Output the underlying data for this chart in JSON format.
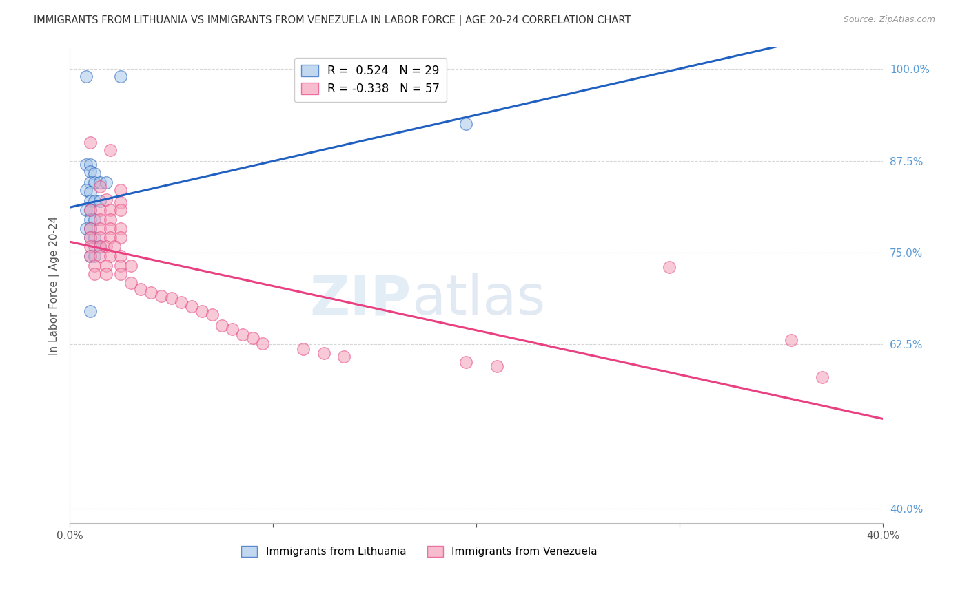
{
  "title": "IMMIGRANTS FROM LITHUANIA VS IMMIGRANTS FROM VENEZUELA IN LABOR FORCE | AGE 20-24 CORRELATION CHART",
  "source": "Source: ZipAtlas.com",
  "ylabel": "In Labor Force | Age 20-24",
  "yticks": [
    0.4,
    0.625,
    0.75,
    0.875,
    1.0
  ],
  "ytick_labels": [
    "40.0%",
    "62.5%",
    "75.0%",
    "87.5%",
    "100.0%"
  ],
  "xlim": [
    0.0,
    0.4
  ],
  "ylim": [
    0.38,
    1.03
  ],
  "legend_r_blue": "R =  0.524",
  "legend_n_blue": "N = 29",
  "legend_r_pink": "R = -0.338",
  "legend_n_pink": "N = 57",
  "blue_color": "#a8c8e8",
  "pink_color": "#f4a0b8",
  "blue_line_color": "#2060c0",
  "pink_line_color": "#e84080",
  "blue_scatter": [
    [
      0.008,
      0.99
    ],
    [
      0.025,
      0.99
    ],
    [
      0.008,
      0.87
    ],
    [
      0.01,
      0.87
    ],
    [
      0.01,
      0.86
    ],
    [
      0.012,
      0.858
    ],
    [
      0.01,
      0.845
    ],
    [
      0.012,
      0.845
    ],
    [
      0.015,
      0.845
    ],
    [
      0.018,
      0.845
    ],
    [
      0.008,
      0.835
    ],
    [
      0.01,
      0.832
    ],
    [
      0.01,
      0.82
    ],
    [
      0.012,
      0.82
    ],
    [
      0.015,
      0.82
    ],
    [
      0.008,
      0.808
    ],
    [
      0.01,
      0.808
    ],
    [
      0.01,
      0.795
    ],
    [
      0.012,
      0.795
    ],
    [
      0.008,
      0.782
    ],
    [
      0.01,
      0.782
    ],
    [
      0.01,
      0.77
    ],
    [
      0.012,
      0.77
    ],
    [
      0.012,
      0.758
    ],
    [
      0.015,
      0.758
    ],
    [
      0.01,
      0.745
    ],
    [
      0.012,
      0.745
    ],
    [
      0.01,
      0.67
    ],
    [
      0.195,
      0.925
    ]
  ],
  "pink_scatter": [
    [
      0.01,
      0.9
    ],
    [
      0.02,
      0.89
    ],
    [
      0.015,
      0.84
    ],
    [
      0.025,
      0.835
    ],
    [
      0.018,
      0.822
    ],
    [
      0.025,
      0.818
    ],
    [
      0.01,
      0.808
    ],
    [
      0.015,
      0.808
    ],
    [
      0.02,
      0.808
    ],
    [
      0.025,
      0.808
    ],
    [
      0.015,
      0.795
    ],
    [
      0.02,
      0.795
    ],
    [
      0.01,
      0.782
    ],
    [
      0.015,
      0.782
    ],
    [
      0.02,
      0.782
    ],
    [
      0.025,
      0.782
    ],
    [
      0.01,
      0.77
    ],
    [
      0.015,
      0.77
    ],
    [
      0.02,
      0.77
    ],
    [
      0.025,
      0.77
    ],
    [
      0.01,
      0.758
    ],
    [
      0.015,
      0.758
    ],
    [
      0.018,
      0.758
    ],
    [
      0.022,
      0.758
    ],
    [
      0.01,
      0.745
    ],
    [
      0.015,
      0.745
    ],
    [
      0.02,
      0.745
    ],
    [
      0.025,
      0.745
    ],
    [
      0.012,
      0.732
    ],
    [
      0.018,
      0.732
    ],
    [
      0.025,
      0.732
    ],
    [
      0.03,
      0.732
    ],
    [
      0.012,
      0.72
    ],
    [
      0.018,
      0.72
    ],
    [
      0.025,
      0.72
    ],
    [
      0.03,
      0.708
    ],
    [
      0.035,
      0.7
    ],
    [
      0.04,
      0.695
    ],
    [
      0.045,
      0.69
    ],
    [
      0.05,
      0.688
    ],
    [
      0.055,
      0.682
    ],
    [
      0.06,
      0.676
    ],
    [
      0.065,
      0.67
    ],
    [
      0.07,
      0.665
    ],
    [
      0.075,
      0.65
    ],
    [
      0.08,
      0.645
    ],
    [
      0.085,
      0.638
    ],
    [
      0.09,
      0.633
    ],
    [
      0.095,
      0.626
    ],
    [
      0.115,
      0.618
    ],
    [
      0.125,
      0.612
    ],
    [
      0.135,
      0.608
    ],
    [
      0.195,
      0.6
    ],
    [
      0.21,
      0.595
    ],
    [
      0.295,
      0.73
    ],
    [
      0.355,
      0.63
    ],
    [
      0.37,
      0.58
    ]
  ],
  "watermark_zip": "ZIP",
  "watermark_atlas": "atlas",
  "background_color": "#ffffff",
  "grid_color": "#cccccc"
}
